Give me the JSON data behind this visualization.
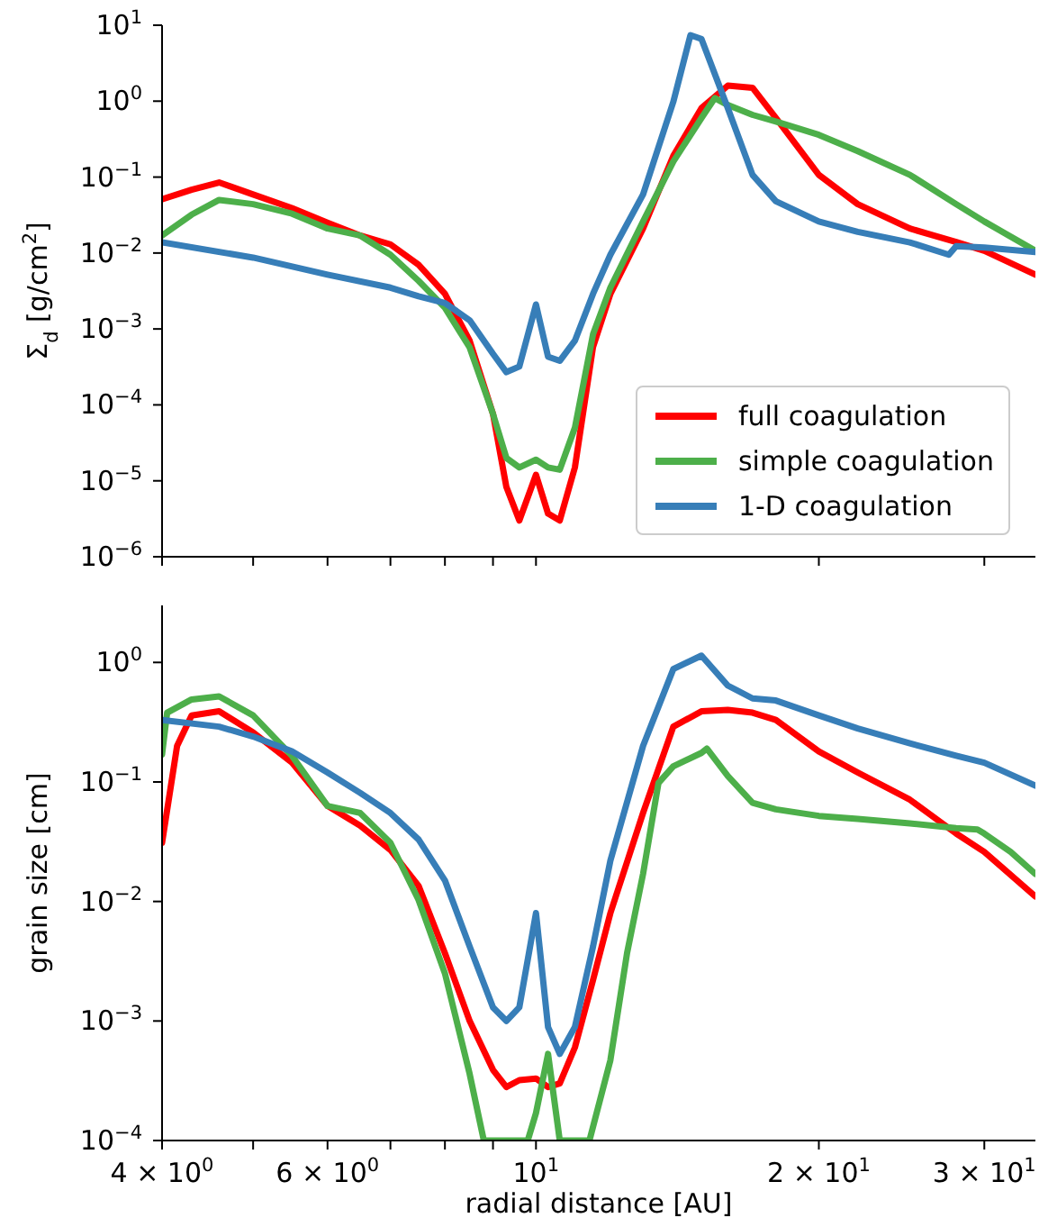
{
  "chart_data": [
    {
      "type": "line",
      "ylabel": "Σ$_{d}$ [g/cm$^{2}$]",
      "log": "xy",
      "xlim": [
        4,
        34
      ],
      "ylim": [
        1e-06,
        10
      ],
      "xticks": [
        {
          "value": 4,
          "label": null
        },
        {
          "value": 5,
          "label": null
        },
        {
          "value": 6,
          "label": null
        },
        {
          "value": 7,
          "label": null
        },
        {
          "value": 8,
          "label": null
        },
        {
          "value": 9,
          "label": null
        },
        {
          "value": 10,
          "label": null
        },
        {
          "value": 20,
          "label": null
        },
        {
          "value": 30,
          "label": null
        }
      ],
      "yticks": [
        {
          "value": 10,
          "label": "10$^{1}$"
        },
        {
          "value": 1,
          "label": "10$^{0}$"
        },
        {
          "value": 0.1,
          "label": "10$^{−1}$"
        },
        {
          "value": 0.01,
          "label": "10$^{−2}$"
        },
        {
          "value": 0.001,
          "label": "10$^{−3}$"
        },
        {
          "value": 0.0001,
          "label": "10$^{−4}$"
        },
        {
          "value": 1e-05,
          "label": "10$^{−5}$"
        },
        {
          "value": 1e-06,
          "label": "10$^{−6}$"
        }
      ],
      "tick_labels": "y",
      "legend": "bottom right",
      "series": [
        {
          "name": "full coagulation",
          "color": "#ff0000",
          "x": [
            4,
            4.3,
            4.6,
            5,
            5.5,
            6,
            6.5,
            7,
            7.5,
            8,
            8.5,
            9,
            9.3,
            9.6,
            10,
            10.3,
            10.6,
            11,
            11.5,
            12,
            13,
            14,
            15,
            16,
            17,
            18,
            20,
            22,
            25,
            28,
            30,
            34
          ],
          "values": [
            0.051,
            0.068,
            0.085,
            0.059,
            0.039,
            0.025,
            0.017,
            0.013,
            0.007,
            0.0029,
            0.0007,
            7.6e-05,
            8.3e-06,
            3e-06,
            1.2e-05,
            3.7e-06,
            3e-06,
            1.5e-05,
            0.00058,
            0.0029,
            0.021,
            0.19,
            0.81,
            1.6,
            1.5,
            0.6,
            0.107,
            0.044,
            0.021,
            0.014,
            0.0107,
            0.0052
          ]
        },
        {
          "name": "simple coagulation",
          "color": "#4daf4a",
          "x": [
            4,
            4.3,
            4.6,
            5,
            5.5,
            6,
            6.5,
            7,
            7.5,
            8,
            8.5,
            9,
            9.3,
            9.6,
            10,
            10.3,
            10.6,
            11,
            11.5,
            12,
            13,
            14,
            15,
            15.5,
            16,
            17,
            18,
            20,
            22,
            25,
            28,
            30,
            34
          ],
          "values": [
            0.017,
            0.032,
            0.05,
            0.044,
            0.033,
            0.021,
            0.017,
            0.0095,
            0.0043,
            0.0019,
            0.00057,
            7.6e-05,
            2e-05,
            1.5e-05,
            1.9e-05,
            1.5e-05,
            1.4e-05,
            5e-05,
            0.00085,
            0.0035,
            0.026,
            0.16,
            0.6,
            1.1,
            0.89,
            0.66,
            0.54,
            0.36,
            0.22,
            0.107,
            0.044,
            0.026,
            0.0107
          ]
        },
        {
          "name": "1-D coagulation",
          "color": "#377eb8",
          "x": [
            4,
            5,
            6,
            7,
            7.5,
            8,
            8.5,
            9,
            9.3,
            9.6,
            10,
            10.3,
            10.6,
            11,
            11.5,
            12,
            13,
            14,
            14.6,
            15,
            16,
            17,
            18,
            20,
            22,
            25,
            27.5,
            28,
            30,
            34
          ],
          "values": [
            0.0138,
            0.0087,
            0.0052,
            0.0035,
            0.0027,
            0.0022,
            0.0013,
            0.00047,
            0.00027,
            0.00032,
            0.0021,
            0.00043,
            0.00038,
            0.0007,
            0.0029,
            0.0095,
            0.059,
            0.98,
            7.4,
            6.6,
            0.81,
            0.107,
            0.048,
            0.026,
            0.019,
            0.0138,
            0.0095,
            0.0123,
            0.0118,
            0.0103
          ]
        }
      ]
    },
    {
      "type": "line",
      "xlabel": "radial distance [AU]",
      "ylabel": "grain size [cm]",
      "log": "xy",
      "xlim": [
        4,
        34
      ],
      "ylim": [
        0.0001,
        3
      ],
      "xticks": [
        {
          "value": 4,
          "label": "4 × 10$^{0}$"
        },
        {
          "value": 5,
          "label": null
        },
        {
          "value": 6,
          "label": "6 × 10$^{0}$"
        },
        {
          "value": 7,
          "label": null
        },
        {
          "value": 8,
          "label": null
        },
        {
          "value": 9,
          "label": null
        },
        {
          "value": 10,
          "label": "10$^{1}$"
        },
        {
          "value": 20,
          "label": "2 × 10$^{1}$"
        },
        {
          "value": 30,
          "label": "3 × 10$^{1}$"
        }
      ],
      "yticks": [
        {
          "value": 1,
          "label": "10$^{0}$"
        },
        {
          "value": 0.1,
          "label": "10$^{−1}$"
        },
        {
          "value": 0.01,
          "label": "10$^{−2}$"
        },
        {
          "value": 0.001,
          "label": "10$^{−3}$"
        },
        {
          "value": 0.0001,
          "label": "10$^{−4}$"
        }
      ],
      "series": [
        {
          "color": "#ff0000",
          "x": [
            4,
            4.15,
            4.3,
            4.6,
            5,
            5.5,
            6,
            6.5,
            7,
            7.5,
            8,
            8.5,
            9,
            9.3,
            9.6,
            10,
            10.3,
            10.6,
            11,
            11.5,
            12,
            13,
            14,
            15,
            16,
            17,
            18,
            20,
            22,
            25,
            28,
            30,
            34
          ],
          "values": [
            0.031,
            0.2,
            0.36,
            0.39,
            0.26,
            0.145,
            0.063,
            0.043,
            0.027,
            0.0135,
            0.0037,
            0.001,
            0.00039,
            0.00028,
            0.00032,
            0.00033,
            0.00028,
            0.0003,
            0.0006,
            0.0022,
            0.008,
            0.055,
            0.29,
            0.39,
            0.4,
            0.38,
            0.33,
            0.18,
            0.12,
            0.071,
            0.037,
            0.026,
            0.011
          ]
        },
        {
          "color": "#4daf4a",
          "x": [
            4,
            4.05,
            4.3,
            4.6,
            5,
            5.5,
            6,
            6.5,
            7,
            7.5,
            8,
            8.5,
            8.8,
            9.3,
            9.8,
            10,
            10.3,
            10.6,
            11.4,
            12,
            12.5,
            13,
            13.5,
            14,
            15,
            15.2,
            16,
            17,
            18,
            20,
            22,
            25,
            28,
            29.5,
            30,
            32,
            34
          ],
          "values": [
            0.17,
            0.38,
            0.49,
            0.52,
            0.36,
            0.165,
            0.063,
            0.055,
            0.031,
            0.0103,
            0.0025,
            0.00036,
            0.0001,
            0.0001,
            0.0001,
            0.00017,
            0.00053,
            0.0001,
            0.0001,
            0.00047,
            0.0037,
            0.017,
            0.098,
            0.135,
            0.175,
            0.19,
            0.112,
            0.067,
            0.059,
            0.052,
            0.049,
            0.045,
            0.041,
            0.04,
            0.037,
            0.026,
            0.017
          ]
        },
        {
          "color": "#377eb8",
          "x": [
            4,
            4.6,
            5,
            5.5,
            6,
            6.5,
            7,
            7.5,
            8,
            8.5,
            9,
            9.3,
            9.6,
            10,
            10.3,
            10.6,
            11,
            11.5,
            12,
            13,
            14,
            15,
            16,
            17,
            18,
            20,
            22,
            25,
            28,
            30,
            34
          ],
          "values": [
            0.33,
            0.29,
            0.24,
            0.18,
            0.12,
            0.081,
            0.055,
            0.033,
            0.015,
            0.0042,
            0.0013,
            0.001,
            0.0013,
            0.008,
            0.00089,
            0.00053,
            0.00089,
            0.0042,
            0.022,
            0.2,
            0.88,
            1.14,
            0.64,
            0.5,
            0.48,
            0.36,
            0.28,
            0.21,
            0.166,
            0.145,
            0.093
          ]
        }
      ]
    }
  ]
}
